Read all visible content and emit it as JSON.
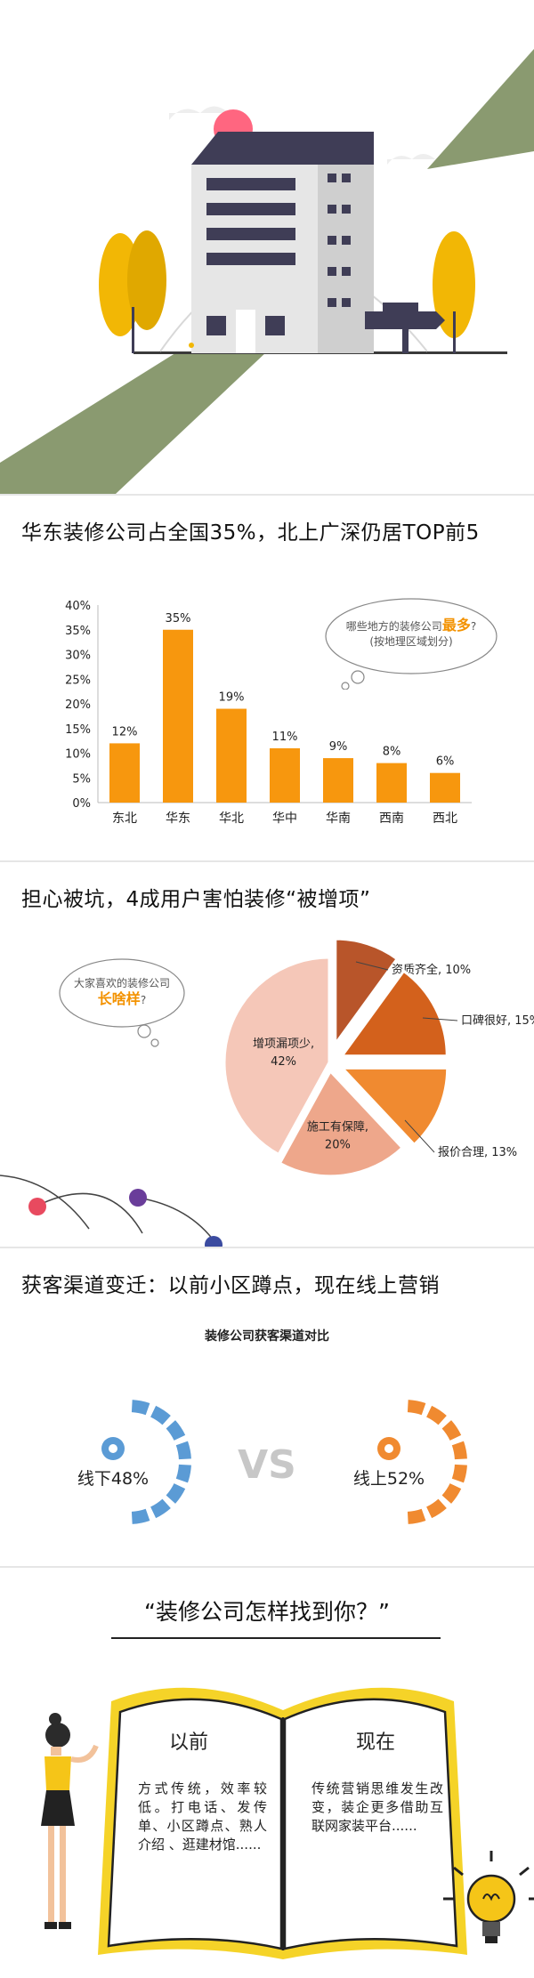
{
  "section1": {
    "title": "华东装修公司占全国35%，北上广深仍居TOP前5",
    "bubble_line1_pre": "哪些地方的装修公司",
    "bubble_line1_hl": "最多",
    "bubble_line1_post": "?",
    "bubble_line2": "(按地理区域划分)"
  },
  "section2": {
    "title": "担心被坑，4成用户害怕装修“被增项”",
    "bubble_line1": "大家喜欢的装修公司",
    "bubble_line2": "长啥样",
    "bubble_line2_post": "?"
  },
  "section3": {
    "title": "获客渠道变迁：以前小区蹲点，现在线上营销",
    "subtitle": "装修公司获客渠道对比",
    "offline_label": "线下48%",
    "online_label": "线上52%",
    "vs": "VS"
  },
  "section4": {
    "title": "“装修公司怎样找到你？”",
    "before_head": "以前",
    "before_text": "方式传统，效率较低。打电话、发传单、小区蹲点、熟人介绍 、逛建材馆......",
    "now_head": "现在",
    "now_text": "传统营销思维发生改变，装企更多借助互联网家装平台......"
  },
  "colors": {
    "orange": "#f7970e",
    "green": "#8a9a70",
    "blue": "#5b9bd5",
    "vs": "#c7c7c7"
  },
  "chart_data": [
    {
      "type": "bar",
      "title": "华东装修公司占全国35%，北上广深仍居TOP前5",
      "categories": [
        "东北",
        "华东",
        "华北",
        "华中",
        "华南",
        "西南",
        "西北"
      ],
      "values": [
        12,
        35,
        19,
        11,
        9,
        8,
        6
      ],
      "value_labels": [
        "12%",
        "35%",
        "19%",
        "11%",
        "9%",
        "8%",
        "6%"
      ],
      "ylim": [
        0,
        40
      ],
      "yticks": [
        "0%",
        "5%",
        "10%",
        "15%",
        "20%",
        "25%",
        "30%",
        "35%",
        "40%"
      ],
      "grid": false
    },
    {
      "type": "pie",
      "title": "担心被坑，4成用户害怕装修“被增项”",
      "labels": [
        "资质齐全",
        "口碑很好",
        "报价合理",
        "施工有保障",
        "增项漏项少"
      ],
      "values": [
        10,
        15,
        13,
        20,
        42
      ],
      "value_labels": [
        "资质齐全, 10%",
        "口碑很好, 15%",
        "报价合理, 13%",
        "施工有保障, 20%",
        "增项漏项少, 42%"
      ],
      "colors": [
        "#b8552a",
        "#d3611c",
        "#f08a30",
        "#eea78b",
        "#f5c7b8"
      ]
    },
    {
      "type": "pie",
      "title": "装修公司获客渠道对比",
      "labels": [
        "线下",
        "线上"
      ],
      "values": [
        48,
        52
      ],
      "value_labels": [
        "线下48%",
        "线上52%"
      ],
      "colors": [
        "#5b9bd5",
        "#f08a30"
      ]
    }
  ]
}
